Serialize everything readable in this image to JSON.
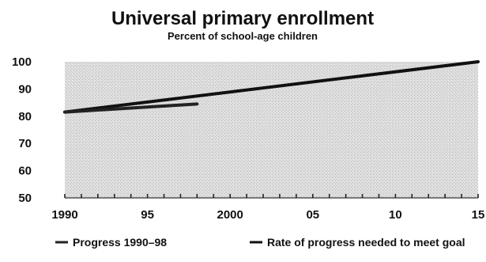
{
  "chart_data": {
    "type": "line",
    "title": "Universal primary enrollment",
    "subtitle": "Percent of school-age children",
    "xlabel": "",
    "ylabel": "",
    "xlim": [
      1990,
      2015
    ],
    "ylim": [
      50,
      100
    ],
    "x_ticks": [
      {
        "value": 1990,
        "label": "1990"
      },
      {
        "value": 1995,
        "label": "95"
      },
      {
        "value": 2000,
        "label": "2000"
      },
      {
        "value": 2005,
        "label": "05"
      },
      {
        "value": 2010,
        "label": "10"
      },
      {
        "value": 2015,
        "label": "15"
      }
    ],
    "y_ticks": [
      {
        "value": 100,
        "label": "100"
      },
      {
        "value": 90,
        "label": "90"
      },
      {
        "value": 80,
        "label": "80"
      },
      {
        "value": 70,
        "label": "70"
      },
      {
        "value": 60,
        "label": "60"
      },
      {
        "value": 50,
        "label": "50"
      }
    ],
    "series": [
      {
        "name": "Progress 1990–98",
        "x": [
          1990,
          1998
        ],
        "y": [
          81.5,
          84.5
        ],
        "color": "#222222"
      },
      {
        "name": "Rate of progress needed to meet goal",
        "x": [
          1990,
          2015
        ],
        "y": [
          81.5,
          100
        ],
        "color": "#111111"
      }
    ],
    "grid": false,
    "plot_background": "#d4d4d4",
    "legend_position": "bottom"
  }
}
